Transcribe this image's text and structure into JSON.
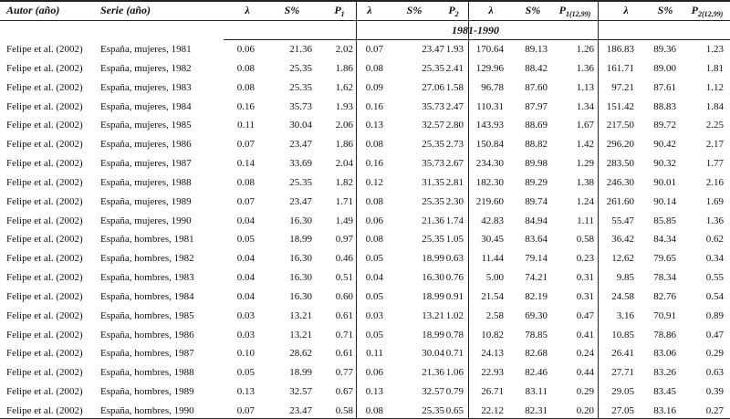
{
  "table": {
    "columns": [
      {
        "main": "Autor (año)"
      },
      {
        "main": "Serie (año)"
      },
      {
        "main": "λ"
      },
      {
        "main": "S%"
      },
      {
        "main": "P",
        "sub": "1"
      },
      {
        "main": "λ"
      },
      {
        "main": "S%"
      },
      {
        "main": "P",
        "sub": "2"
      },
      {
        "main": "λ"
      },
      {
        "main": "S%"
      },
      {
        "main": "P",
        "sub": "1(12,99)"
      },
      {
        "main": "λ"
      },
      {
        "main": "S%"
      },
      {
        "main": "P",
        "sub": "2(12,99)"
      }
    ],
    "period": "1981-1990",
    "rows": [
      [
        "Felipe et al. (2002)",
        "España, mujeres, 1981",
        "0.06",
        "21.36",
        "2.02",
        "0.07",
        "23.47",
        "1.93",
        "170.64",
        "89.13",
        "1.26",
        "186.83",
        "89.36",
        "1.23"
      ],
      [
        "Felipe et al. (2002)",
        "España, mujeres, 1982",
        "0.08",
        "25.35",
        "1.86",
        "0.08",
        "25.35",
        "2.41",
        "129.96",
        "88.42",
        "1.36",
        "161.71",
        "89.00",
        "1.81"
      ],
      [
        "Felipe et al. (2002)",
        "España, mujeres, 1983",
        "0.08",
        "25.35",
        "1.62",
        "0.09",
        "27.06",
        "1.58",
        "96.78",
        "87.60",
        "1.13",
        "97.21",
        "87.61",
        "1.12"
      ],
      [
        "Felipe et al. (2002)",
        "España, mujeres, 1984",
        "0.16",
        "35.73",
        "1.93",
        "0.16",
        "35.73",
        "2.47",
        "110.31",
        "87.97",
        "1.34",
        "151.42",
        "88.83",
        "1.84"
      ],
      [
        "Felipe et al. (2002)",
        "España, mujeres, 1985",
        "0.11",
        "30.04",
        "2.06",
        "0.13",
        "32.57",
        "2.80",
        "143.93",
        "88.69",
        "1.67",
        "217.50",
        "89.72",
        "2.25"
      ],
      [
        "Felipe et al. (2002)",
        "España, mujeres, 1986",
        "0.07",
        "23.47",
        "1.86",
        "0.08",
        "25.35",
        "2.73",
        "150.84",
        "88.82",
        "1.42",
        "296.20",
        "90.42",
        "2.17"
      ],
      [
        "Felipe et al. (2002)",
        "España, mujeres, 1987",
        "0.14",
        "33.69",
        "2.04",
        "0.16",
        "35.73",
        "2.67",
        "234.30",
        "89.98",
        "1.29",
        "283.50",
        "90.32",
        "1.77"
      ],
      [
        "Felipe et al. (2002)",
        "España, mujeres, 1988",
        "0.08",
        "25.35",
        "1.82",
        "0.12",
        "31.35",
        "2.81",
        "182.30",
        "89.29",
        "1.38",
        "246.30",
        "90.01",
        "2.16"
      ],
      [
        "Felipe et al. (2002)",
        "España, mujeres, 1989",
        "0.07",
        "23.47",
        "1.71",
        "0.08",
        "25.35",
        "2.30",
        "219.60",
        "89.74",
        "1.24",
        "261.60",
        "90.14",
        "1.69"
      ],
      [
        "Felipe et al. (2002)",
        "España, mujeres, 1990",
        "0.04",
        "16.30",
        "1.49",
        "0.06",
        "21.36",
        "1.74",
        "42.83",
        "84.94",
        "1.11",
        "55.47",
        "85.85",
        "1.36"
      ],
      [
        "Felipe et al. (2002)",
        "España, hombres, 1981",
        "0.05",
        "18.99",
        "0.97",
        "0.08",
        "25.35",
        "1.05",
        "30.45",
        "83.64",
        "0.58",
        "36.42",
        "84.34",
        "0.62"
      ],
      [
        "Felipe et al. (2002)",
        "España, hombres, 1982",
        "0.04",
        "16.30",
        "0.46",
        "0.05",
        "18.99",
        "0.63",
        "11.44",
        "79.14",
        "0.23",
        "12.62",
        "79.65",
        "0.34"
      ],
      [
        "Felipe et al. (2002)",
        "España, hombres, 1983",
        "0.04",
        "16.30",
        "0.51",
        "0.04",
        "16.30",
        "0.76",
        "5.00",
        "74.21",
        "0.31",
        "9.85",
        "78.34",
        "0.55"
      ],
      [
        "Felipe et al. (2002)",
        "España, hombres, 1984",
        "0.04",
        "16.30",
        "0.60",
        "0.05",
        "18.99",
        "0.91",
        "21.54",
        "82.19",
        "0.31",
        "24.58",
        "82.76",
        "0.54"
      ],
      [
        "Felipe et al. (2002)",
        "España, hombres, 1985",
        "0.03",
        "13.21",
        "0.61",
        "0.03",
        "13.21",
        "1.02",
        "2.58",
        "69.30",
        "0.47",
        "3.16",
        "70.91",
        "0.89"
      ],
      [
        "Felipe et al. (2002)",
        "España, hombres, 1986",
        "0.03",
        "13.21",
        "0.71",
        "0.05",
        "18.99",
        "0.78",
        "10.82",
        "78.85",
        "0.41",
        "10.85",
        "78.86",
        "0.47"
      ],
      [
        "Felipe et al. (2002)",
        "España, hombres, 1987",
        "0.10",
        "28.62",
        "0.61",
        "0.11",
        "30.04",
        "0.71",
        "24.13",
        "82.68",
        "0.24",
        "26.41",
        "83.06",
        "0.29"
      ],
      [
        "Felipe et al. (2002)",
        "España, hombres, 1988",
        "0.05",
        "18.99",
        "0.77",
        "0.06",
        "21.36",
        "1.06",
        "22.93",
        "82.46",
        "0.44",
        "27.71",
        "83.26",
        "0.63"
      ],
      [
        "Felipe et al. (2002)",
        "España, hombres, 1989",
        "0.13",
        "32.57",
        "0.67",
        "0.13",
        "32.57",
        "0.79",
        "26.71",
        "83.11",
        "0.29",
        "29.05",
        "83.45",
        "0.39"
      ],
      [
        "Felipe et al. (2002)",
        "España, hombres, 1990",
        "0.07",
        "23.47",
        "0.58",
        "0.08",
        "25.35",
        "0.65",
        "22.12",
        "82.31",
        "0.20",
        "27.05",
        "83.16",
        "0.27"
      ]
    ]
  }
}
